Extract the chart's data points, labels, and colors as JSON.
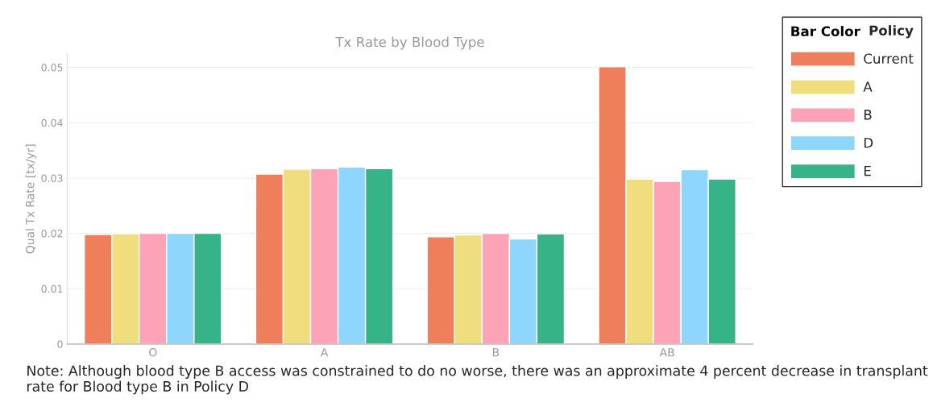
{
  "chart_data": {
    "type": "bar",
    "title": "Tx Rate by Blood Type",
    "ylabel": "Qual Tx Rate [tx/yr]",
    "categories": [
      "O",
      "A",
      "B",
      "AB"
    ],
    "series": [
      {
        "name": "Current",
        "color": "#ee7f5a",
        "values": [
          0.0198,
          0.0307,
          0.0194,
          0.0501
        ]
      },
      {
        "name": "A",
        "color": "#efdd7e",
        "values": [
          0.0199,
          0.0316,
          0.0197,
          0.0298
        ]
      },
      {
        "name": "B",
        "color": "#fca3b7",
        "values": [
          0.02,
          0.0317,
          0.02,
          0.0294
        ]
      },
      {
        "name": "D",
        "color": "#8ed6fb",
        "values": [
          0.02,
          0.032,
          0.019,
          0.0315
        ]
      },
      {
        "name": "E",
        "color": "#36b488",
        "values": [
          0.02,
          0.0317,
          0.0199,
          0.0298
        ]
      }
    ],
    "ylim": [
      0,
      0.0525
    ],
    "yticks": [
      0,
      0.01,
      0.02,
      0.03,
      0.04,
      0.05
    ],
    "grid": "y",
    "legend": "top right",
    "legend_title": "Policy",
    "annotations": [
      "Bar Color",
      "Note: Although blood type B access was constrained to do no worse, there was an approximate 4 percent decrease in transplant rate for Blood type B in Policy D"
    ]
  }
}
